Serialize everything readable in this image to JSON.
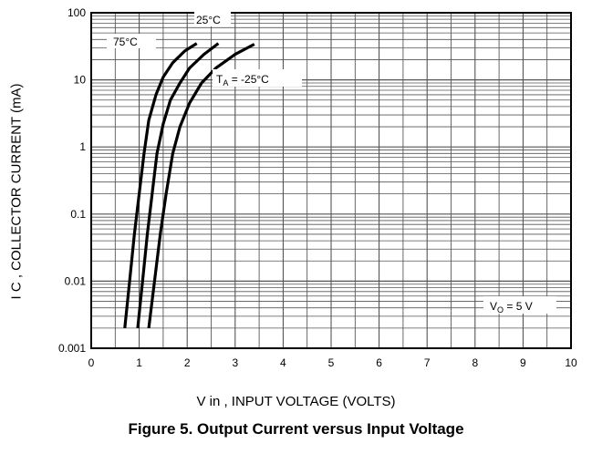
{
  "figure_caption": "Figure 5. Output Current versus Input Voltage",
  "chart_data": {
    "type": "line",
    "xlabel": "V in , INPUT VOLTAGE (VOLTS)",
    "ylabel": "I C , COLLECTOR CURRENT (mA)",
    "xlim": [
      0,
      10
    ],
    "ylim": [
      0.001,
      100
    ],
    "yscale": "log",
    "x_ticks": [
      "0",
      "1",
      "2",
      "3",
      "4",
      "5",
      "6",
      "7",
      "8",
      "9",
      "10"
    ],
    "y_ticks": [
      "0.001",
      "0.01",
      "0.1",
      "1",
      "10",
      "100"
    ],
    "grid": true,
    "series": [
      {
        "name": "75°C",
        "x": [
          0.7,
          0.8,
          0.9,
          1.0,
          1.1,
          1.2,
          1.35,
          1.5,
          1.7,
          1.95,
          2.2
        ],
        "y": [
          0.002,
          0.01,
          0.05,
          0.2,
          0.8,
          2.5,
          6,
          11,
          18,
          27,
          35
        ]
      },
      {
        "name": "25°C",
        "x": [
          0.97,
          1.07,
          1.17,
          1.27,
          1.37,
          1.5,
          1.65,
          1.85,
          2.05,
          2.35,
          2.65
        ],
        "y": [
          0.002,
          0.01,
          0.05,
          0.2,
          0.8,
          2.2,
          5,
          9,
          15,
          24,
          35
        ]
      },
      {
        "name": "T_A = -25°C",
        "x": [
          1.2,
          1.32,
          1.44,
          1.56,
          1.7,
          1.85,
          2.05,
          2.3,
          2.6,
          3.0,
          3.4
        ],
        "y": [
          0.002,
          0.01,
          0.05,
          0.2,
          0.8,
          2.0,
          4.5,
          9,
          15,
          24,
          34
        ]
      }
    ],
    "annotations": [
      "75°C",
      "25°C",
      "T_A = -25°C",
      "V_O = 5 V"
    ]
  },
  "labels": {
    "label_75": "75°C",
    "label_25": "25°C",
    "label_ta_main": "T",
    "label_ta_sub": "A",
    "label_ta_rest": " = -25°C",
    "label_vo_main": "V",
    "label_vo_sub": "O",
    "label_vo_rest": " = 5 V"
  }
}
